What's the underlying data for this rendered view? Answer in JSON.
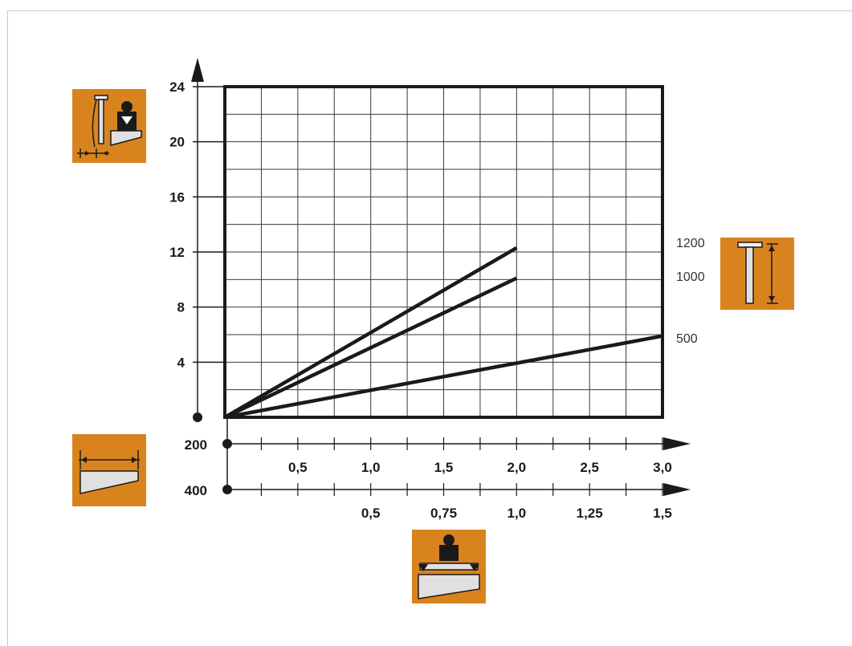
{
  "chart_data": {
    "type": "line",
    "y_axis": {
      "ticks": [
        "4",
        "8",
        "12",
        "16",
        "20",
        "24"
      ],
      "ylim": [
        0,
        24
      ]
    },
    "x_axes": [
      {
        "label": "200",
        "ticks": [
          "0,5",
          "1,0",
          "1,5",
          "2,0",
          "2,5",
          "3,0"
        ],
        "xlim": [
          0,
          3.0
        ],
        "minor_step": 0.25
      },
      {
        "label": "400",
        "ticks": [
          "0,5",
          "0,75",
          "1,0",
          "1,25",
          "1,5"
        ],
        "xlim": [
          0,
          1.5
        ],
        "first_tick": 0.25,
        "minor_step": 0.125
      }
    ],
    "grid": true,
    "series": [
      {
        "name": "1200",
        "x": [
          0,
          2.0
        ],
        "y": [
          0,
          12.3
        ]
      },
      {
        "name": "1000",
        "x": [
          0,
          2.0
        ],
        "y": [
          0,
          10.1
        ]
      },
      {
        "name": "500",
        "x": [
          0,
          3.0
        ],
        "y": [
          0,
          5.9
        ]
      }
    ]
  },
  "icons": {
    "accent_color": "#d9831f",
    "top_left": "deflection-load-icon",
    "right": "post-height-icon",
    "bottom_left": "wedge-width-icon",
    "bottom_center": "wedge-load-icon"
  }
}
